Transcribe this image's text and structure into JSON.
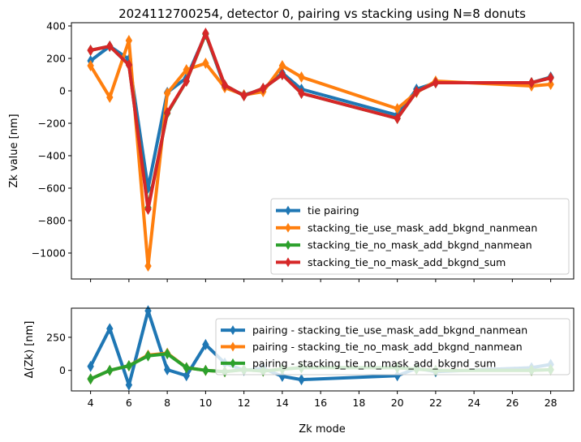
{
  "chart_data": [
    {
      "type": "line",
      "title": "2024112700254, detector 0, pairing vs stacking using N=8 donuts",
      "xlabel": "",
      "ylabel": "Zk value [nm]",
      "xlim": [
        3.0,
        29.2
      ],
      "ylim": [
        -1160,
        420
      ],
      "yticks": [
        400,
        200,
        0,
        -200,
        -400,
        -600,
        -800,
        -1000
      ],
      "ytick_labels": [
        "400",
        "200",
        "0",
        "−200",
        "−400",
        "−600",
        "−800",
        "−1000"
      ],
      "xticks": [
        4,
        6,
        8,
        10,
        12,
        14,
        16,
        18,
        20,
        22,
        24,
        26,
        28
      ],
      "grid": false,
      "legend_position": "lower-right",
      "x": [
        4,
        5,
        6,
        7,
        8,
        9,
        10,
        11,
        12,
        13,
        14,
        15,
        20,
        21,
        22,
        27,
        28
      ],
      "series": [
        {
          "name": "tie pairing",
          "color": "#1f77b4",
          "values": [
            185,
            275,
            195,
            -600,
            -10,
            80,
            350,
            25,
            -25,
            10,
            110,
            10,
            -150,
            10,
            50,
            50,
            85
          ]
        },
        {
          "name": "stacking_tie_use_mask_add_bkgnd_nanmean",
          "color": "#ff7f0e",
          "values": [
            155,
            -40,
            310,
            -1080,
            -15,
            130,
            170,
            20,
            -25,
            -5,
            155,
            85,
            -110,
            -10,
            60,
            30,
            40
          ]
        },
        {
          "name": "stacking_tie_no_mask_add_bkgnd_nanmean",
          "color": "#2ca02c",
          "values": [
            250,
            275,
            160,
            -720,
            -140,
            60,
            350,
            35,
            -30,
            15,
            100,
            -15,
            -170,
            -5,
            50,
            50,
            80
          ]
        },
        {
          "name": "stacking_tie_no_mask_add_bkgnd_sum",
          "color": "#d62728",
          "values": [
            250,
            275,
            160,
            -730,
            -135,
            60,
            355,
            35,
            -30,
            15,
            100,
            -15,
            -170,
            -5,
            50,
            50,
            80
          ]
        }
      ]
    },
    {
      "type": "line",
      "title": "",
      "xlabel": "Zk mode",
      "ylabel": "Δ(Zk) [nm]",
      "xlim": [
        3.0,
        29.2
      ],
      "ylim": [
        -155,
        470
      ],
      "yticks": [
        250,
        0
      ],
      "ytick_labels": [
        "250",
        "0"
      ],
      "xticks": [
        4,
        6,
        8,
        10,
        12,
        14,
        16,
        18,
        20,
        22,
        24,
        26,
        28
      ],
      "xtick_labels": [
        "4",
        "6",
        "8",
        "10",
        "12",
        "14",
        "16",
        "18",
        "20",
        "22",
        "24",
        "26",
        "28"
      ],
      "grid": false,
      "legend_position": "upper-right",
      "x": [
        4,
        5,
        6,
        7,
        8,
        9,
        10,
        11,
        12,
        13,
        14,
        15,
        20,
        21,
        22,
        27,
        28
      ],
      "series": [
        {
          "name": "pairing -  stacking_tie_use_mask_add_bkgnd_nanmean",
          "color": "#1f77b4",
          "values": [
            30,
            315,
            -110,
            450,
            5,
            -40,
            195,
            55,
            0,
            15,
            -45,
            -70,
            -40,
            15,
            -10,
            20,
            45
          ]
        },
        {
          "name": "pairing -  stacking_tie_no_mask_add_bkgnd_nanmean",
          "color": "#ff7f0e",
          "values": [
            -65,
            0,
            35,
            115,
            130,
            20,
            0,
            -10,
            5,
            -5,
            10,
            20,
            20,
            10,
            0,
            0,
            5
          ]
        },
        {
          "name": "pairing -  stacking_tie_no_mask_add_bkgnd_sum",
          "color": "#2ca02c",
          "values": [
            -65,
            0,
            35,
            110,
            125,
            20,
            0,
            -10,
            5,
            -5,
            10,
            20,
            20,
            10,
            0,
            0,
            5
          ]
        }
      ]
    }
  ]
}
